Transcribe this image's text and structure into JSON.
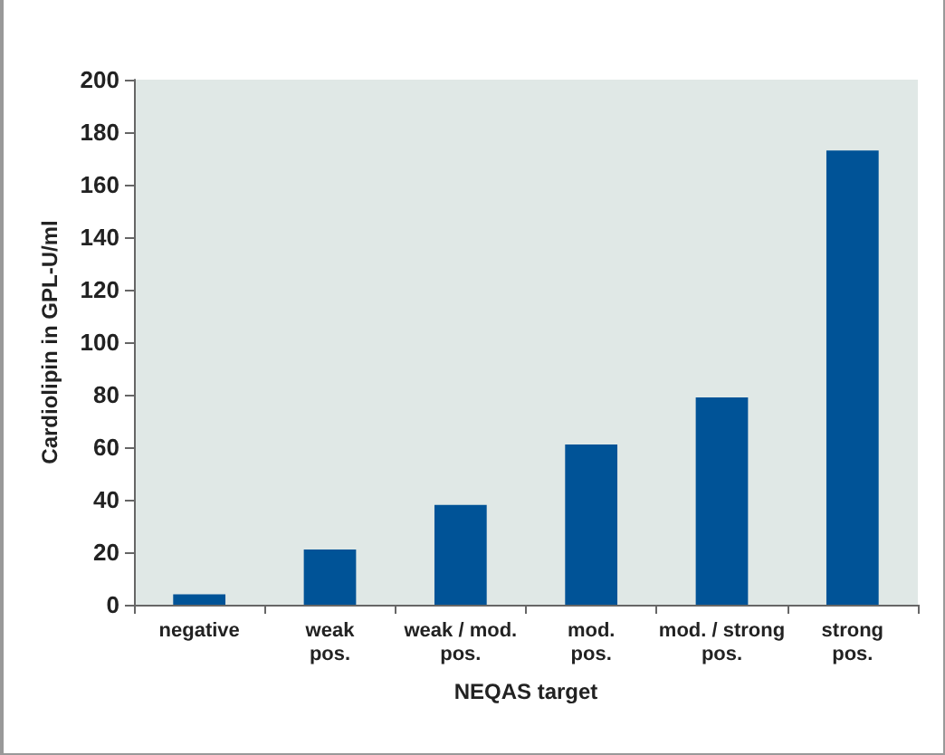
{
  "chart_data": {
    "type": "bar",
    "xlabel": "NEQAS target",
    "ylabel": "Cardiolipin in GPL-U/ml",
    "categories": [
      "negative",
      "weak\npos.",
      "weak / mod.\npos.",
      "mod.\npos.",
      "mod. / strong\npos.",
      "strong\npos."
    ],
    "values": [
      4,
      21,
      38,
      61,
      79,
      173
    ],
    "color": "#005397",
    "ylim": [
      0,
      200
    ],
    "yticks": [
      0,
      20,
      40,
      60,
      80,
      100,
      120,
      140,
      160,
      180,
      200
    ],
    "grid": false
  }
}
